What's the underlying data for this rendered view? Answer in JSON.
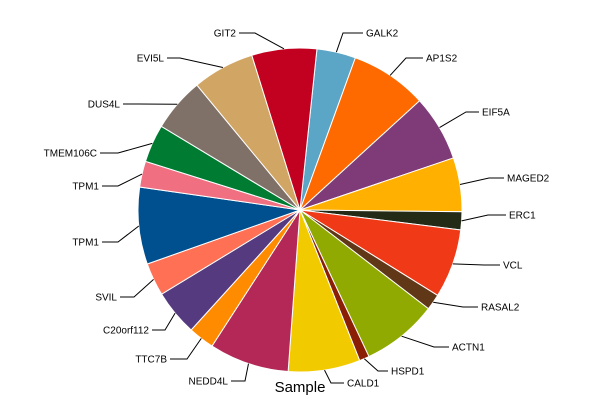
{
  "chart_data": {
    "type": "pie",
    "title": "Sample",
    "start_angle_deg": -84,
    "direction": "clockwise",
    "legend": "none",
    "slices": [
      {
        "label": "GALK2",
        "value": 3.9,
        "color": "#5ba5c6"
      },
      {
        "label": "AP1S2",
        "value": 7.7,
        "color": "#ff6a00"
      },
      {
        "label": "EIF5A",
        "value": 6.6,
        "color": "#7e3b77"
      },
      {
        "label": "MAGED2",
        "value": 5.4,
        "color": "#ffb000"
      },
      {
        "label": "ERC1",
        "value": 1.8,
        "color": "#232a15"
      },
      {
        "label": "VCL",
        "value": 6.9,
        "color": "#f03a17"
      },
      {
        "label": "RASAL2",
        "value": 1.6,
        "color": "#603818"
      },
      {
        "label": "ACTN1",
        "value": 7.6,
        "color": "#91aa01"
      },
      {
        "label": "HSPD1",
        "value": 1.0,
        "color": "#8a1f06"
      },
      {
        "label": "CALD1",
        "value": 7.2,
        "color": "#f2ca00"
      },
      {
        "label": "NEDD4L",
        "value": 8.0,
        "color": "#b32857"
      },
      {
        "label": "TTC7B",
        "value": 2.6,
        "color": "#ff8c00"
      },
      {
        "label": "C20orf112",
        "value": 4.6,
        "color": "#563a80"
      },
      {
        "label": "SVIL",
        "value": 3.3,
        "color": "#ff7055"
      },
      {
        "label": "TPM1",
        "value": 7.7,
        "color": "#00508f"
      },
      {
        "label": "TPM1",
        "value": 2.6,
        "color": "#f06f81"
      },
      {
        "label": "TMEM106C",
        "value": 3.8,
        "color": "#007c32"
      },
      {
        "label": "DUS4L",
        "value": 5.4,
        "color": "#807168"
      },
      {
        "label": "EVI5L",
        "value": 6.2,
        "color": "#d1a665"
      },
      {
        "label": "GIT2",
        "value": 6.5,
        "color": "#c20020"
      }
    ]
  }
}
